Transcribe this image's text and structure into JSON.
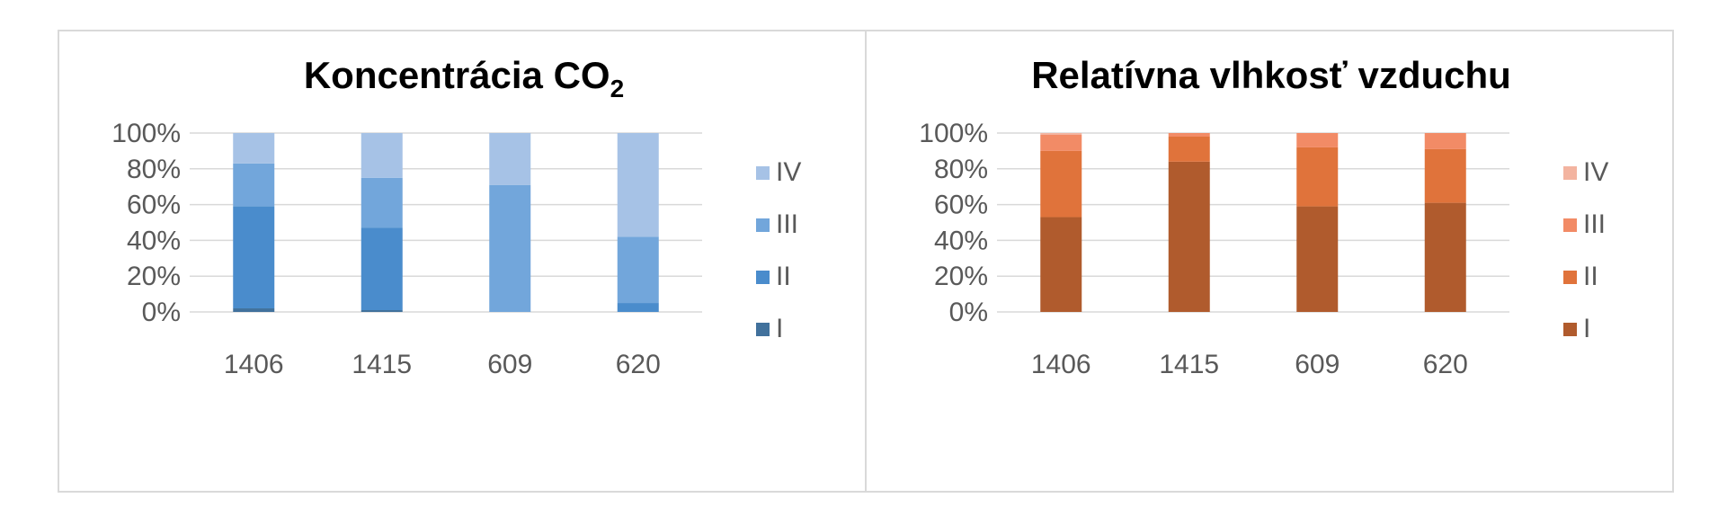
{
  "chart_data": [
    {
      "type": "bar",
      "stacked": true,
      "title": "Koncentrácia CO",
      "title_subscript": "2",
      "categories": [
        "1406",
        "1415",
        "609",
        "620"
      ],
      "y_ticks": [
        "0%",
        "20%",
        "40%",
        "60%",
        "80%",
        "100%"
      ],
      "ylim": [
        0,
        100
      ],
      "grid": true,
      "legend_position": "right",
      "series": [
        {
          "name": "I",
          "color": "#41719c",
          "values": [
            2,
            1,
            0,
            0
          ]
        },
        {
          "name": "II",
          "color": "#4a8ccc",
          "values": [
            57,
            46,
            0,
            5
          ]
        },
        {
          "name": "III",
          "color": "#72a6db",
          "values": [
            24,
            28,
            71,
            37
          ]
        },
        {
          "name": "IV",
          "color": "#a6c2e6",
          "values": [
            17,
            25,
            29,
            58
          ]
        }
      ]
    },
    {
      "type": "bar",
      "stacked": true,
      "title": "Relatívna vlhkosť vzduchu",
      "categories": [
        "1406",
        "1415",
        "609",
        "620"
      ],
      "y_ticks": [
        "0%",
        "20%",
        "40%",
        "60%",
        "80%",
        "100%"
      ],
      "ylim": [
        0,
        100
      ],
      "grid": true,
      "legend_position": "right",
      "series": [
        {
          "name": "I",
          "color": "#b05b2d",
          "values": [
            53,
            84,
            59,
            61
          ]
        },
        {
          "name": "II",
          "color": "#e0733b",
          "values": [
            37,
            14,
            33,
            30
          ]
        },
        {
          "name": "III",
          "color": "#f28b66",
          "values": [
            9,
            2,
            8,
            9
          ]
        },
        {
          "name": "IV",
          "color": "#f3b4a0",
          "values": [
            1,
            0,
            0,
            0
          ]
        }
      ]
    }
  ]
}
